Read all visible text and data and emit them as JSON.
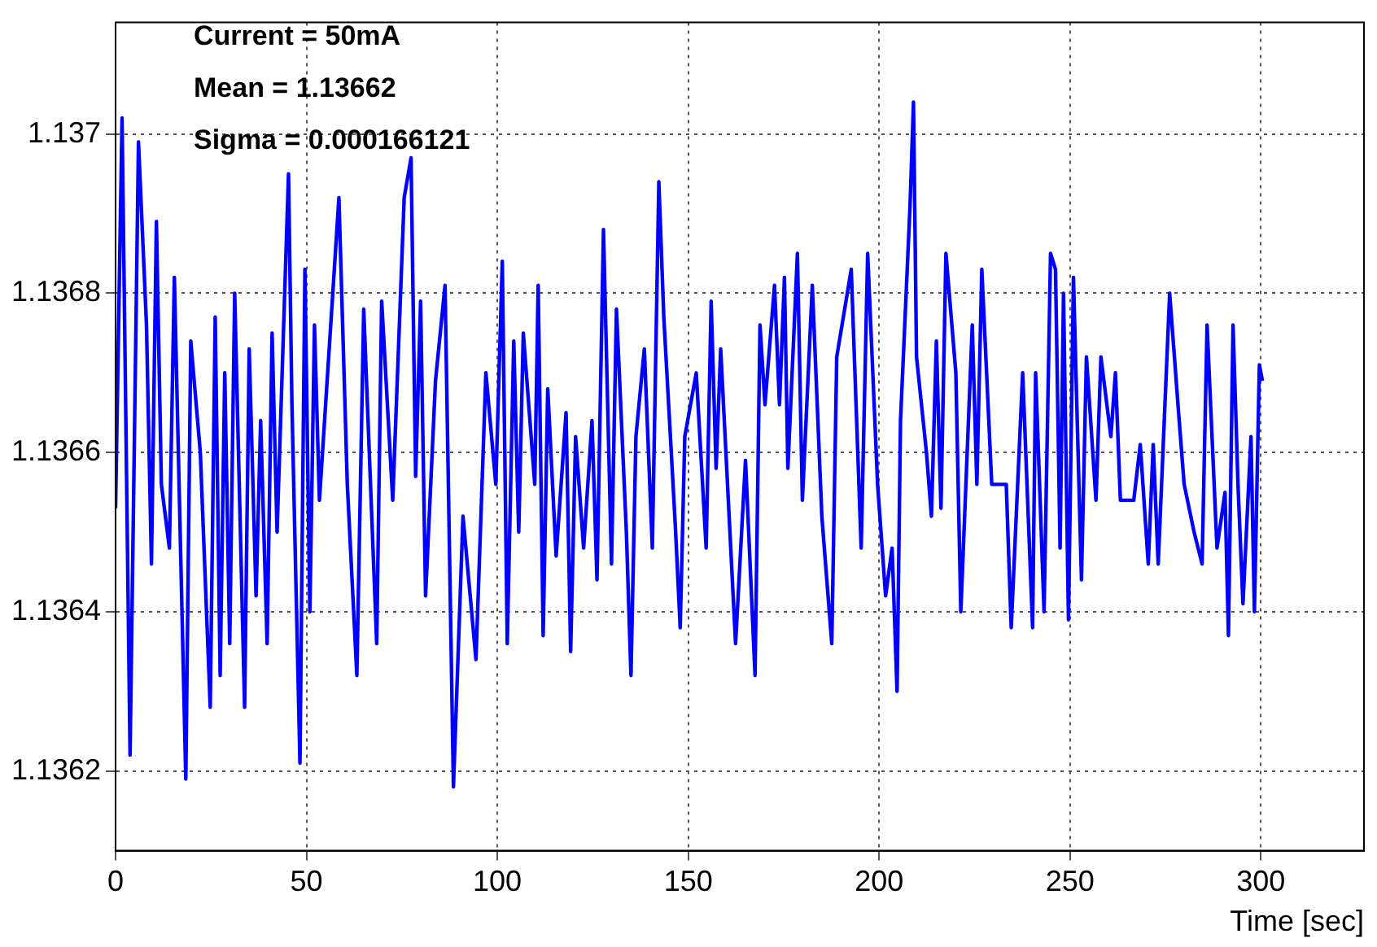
{
  "chart_data": {
    "type": "line",
    "xlabel": "Time [sec]",
    "annotations": [
      "Current = 50mA",
      "Mean = 1.13662",
      "Sigma = 0.000166121"
    ],
    "xlim": [
      0,
      327
    ],
    "xticks": [
      0,
      50,
      100,
      150,
      200,
      250,
      300
    ],
    "ylim": [
      1.1361,
      1.13714
    ],
    "yticks": [
      1.1362,
      1.1364,
      1.1366,
      1.1368,
      1.137
    ],
    "grid": true,
    "marker": "none",
    "line_style": "solid",
    "series": [
      {
        "color": "#0000ff",
        "x": [
          0,
          1.7,
          3.8,
          6,
          8.1,
          9.4,
          10.7,
          12,
          14.1,
          15.4,
          18.4,
          19.7,
          22.2,
          24.8,
          26.1,
          27.4,
          28.6,
          29.9,
          31.2,
          33.8,
          35,
          36.8,
          38,
          39.7,
          41,
          42.3,
          45.3,
          46.2,
          48.3,
          49.6,
          50.9,
          52.1,
          53.4,
          57.3,
          58.5,
          60.7,
          63.2,
          65,
          68.4,
          69.7,
          72.6,
          75.6,
          77.4,
          78.6,
          79.9,
          81.2,
          83.8,
          86.3,
          88.5,
          91,
          94.4,
          97,
          99.6,
          101.3,
          102.6,
          104.3,
          105.6,
          106.8,
          109.8,
          110.7,
          112,
          113.2,
          115.4,
          118,
          119.2,
          120.5,
          122.6,
          124.8,
          126.1,
          127.8,
          129.9,
          131.2,
          133.8,
          135,
          136.3,
          138.5,
          140.6,
          142.3,
          143.6,
          146.6,
          147.9,
          149.1,
          152.1,
          154.7,
          156,
          157.3,
          158.5,
          162.4,
          165,
          167.5,
          168.8,
          170.1,
          172.6,
          173.9,
          175.2,
          176.1,
          178.6,
          179.9,
          182.5,
          185,
          187.6,
          188.9,
          192.7,
          195.3,
          197,
          199.6,
          201.7,
          203.4,
          204.7,
          205.6,
          208.1,
          209,
          209.8,
          212.4,
          213.7,
          215,
          216.2,
          217.5,
          220.1,
          221.4,
          224.4,
          225.6,
          226.9,
          229.5,
          233.3,
          234.6,
          237.6,
          240.2,
          241,
          243.2,
          244.9,
          246.2,
          247.4,
          248.3,
          249.6,
          250.9,
          253,
          254.3,
          256.8,
          258.1,
          260.7,
          261.9,
          263.2,
          266.7,
          268.4,
          270.5,
          271.8,
          273.1,
          276.1,
          278.6,
          279.9,
          282.5,
          284.6,
          285.9,
          288.5,
          290.6,
          291.5,
          292.7,
          294,
          295.3,
          297.4,
          298.3,
          299.6,
          300.4
        ],
        "values": [
          1.13653,
          1.13702,
          1.13622,
          1.13699,
          1.13676,
          1.13646,
          1.13689,
          1.13656,
          1.13648,
          1.13682,
          1.13619,
          1.13674,
          1.1366,
          1.13628,
          1.13677,
          1.13632,
          1.1367,
          1.13636,
          1.1368,
          1.13628,
          1.13673,
          1.13642,
          1.13664,
          1.13636,
          1.13675,
          1.1365,
          1.13695,
          1.13666,
          1.13621,
          1.13683,
          1.1364,
          1.13676,
          1.13654,
          1.13683,
          1.13692,
          1.13656,
          1.13632,
          1.13678,
          1.13636,
          1.13679,
          1.13654,
          1.13692,
          1.13697,
          1.13657,
          1.13679,
          1.13642,
          1.13669,
          1.13681,
          1.13618,
          1.13652,
          1.13634,
          1.1367,
          1.13656,
          1.13684,
          1.13636,
          1.13674,
          1.1365,
          1.13675,
          1.13656,
          1.13681,
          1.13637,
          1.13668,
          1.13647,
          1.13665,
          1.13635,
          1.13662,
          1.13648,
          1.13664,
          1.13644,
          1.13688,
          1.13646,
          1.13678,
          1.1365,
          1.13632,
          1.13662,
          1.13673,
          1.13648,
          1.13694,
          1.13677,
          1.13651,
          1.13638,
          1.13662,
          1.1367,
          1.13648,
          1.13679,
          1.13658,
          1.13673,
          1.13636,
          1.13659,
          1.13632,
          1.13676,
          1.13666,
          1.13681,
          1.13666,
          1.13682,
          1.13658,
          1.13685,
          1.13654,
          1.13681,
          1.13652,
          1.13636,
          1.13672,
          1.13683,
          1.13648,
          1.13685,
          1.13656,
          1.13642,
          1.13648,
          1.1363,
          1.13664,
          1.13691,
          1.13704,
          1.13672,
          1.1366,
          1.13652,
          1.13674,
          1.13653,
          1.13685,
          1.1367,
          1.1364,
          1.13676,
          1.13656,
          1.13683,
          1.13656,
          1.13656,
          1.13638,
          1.1367,
          1.13638,
          1.1367,
          1.1364,
          1.13685,
          1.13683,
          1.13648,
          1.1368,
          1.13639,
          1.13682,
          1.13644,
          1.13672,
          1.13654,
          1.13672,
          1.13662,
          1.1367,
          1.13654,
          1.13654,
          1.13661,
          1.13646,
          1.13661,
          1.13646,
          1.1368,
          1.13664,
          1.13656,
          1.1365,
          1.13646,
          1.13676,
          1.13648,
          1.13655,
          1.13637,
          1.13676,
          1.13656,
          1.13641,
          1.13662,
          1.1364,
          1.13671,
          1.13669
        ]
      }
    ]
  }
}
